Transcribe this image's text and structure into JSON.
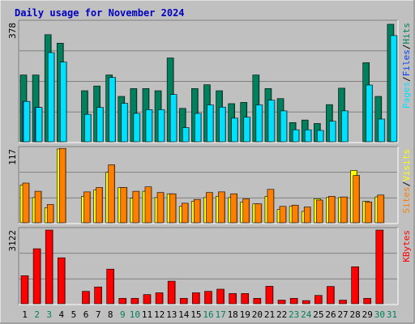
{
  "title": "Daily usage for November 2024",
  "colors": {
    "background": "#c0c0c0",
    "plot_bg": "#c0c0c0",
    "title": "#0000c0",
    "hits": "#00805c",
    "files": "#0040ff",
    "pages": "#00e0ff",
    "visits": "#ffff00",
    "sites": "#ff8000",
    "kbytes": "#ff0000",
    "weekend_label": "#00805c",
    "weekday_label": "#000000",
    "slash": "#000000"
  },
  "chart_data": [
    {
      "type": "bar",
      "panel": "hits-files-pages",
      "ymax_label": "378",
      "ymax": 378,
      "grid": true,
      "legend": [
        "Pages",
        "Files",
        "Hits"
      ],
      "categories": [
        "1",
        "2",
        "3",
        "4",
        "5",
        "6",
        "7",
        "8",
        "9",
        "10",
        "11",
        "12",
        "13",
        "14",
        "15",
        "16",
        "17",
        "18",
        "19",
        "20",
        "21",
        "22",
        "23",
        "24",
        "25",
        "26",
        "27",
        "28",
        "29",
        "30",
        "31"
      ],
      "weekend_days": [
        "2",
        "3",
        "9",
        "10",
        "16",
        "17",
        "23",
        "24",
        "30",
        "31"
      ],
      "series": [
        {
          "name": "Hits",
          "values": [
            212,
            212,
            340,
            313,
            0,
            162,
            177,
            212,
            144,
            169,
            169,
            162,
            266,
            106,
            169,
            181,
            162,
            121,
            125,
            212,
            169,
            137,
            61,
            69,
            58,
            118,
            170,
            0,
            251,
            144,
            373
          ]
        },
        {
          "name": "Files",
          "values": [
            128,
            109,
            0,
            0,
            0,
            0,
            0,
            0,
            0,
            0,
            0,
            0,
            0,
            0,
            0,
            0,
            0,
            0,
            0,
            0,
            0,
            0,
            0,
            0,
            0,
            0,
            0,
            0,
            0,
            0,
            0
          ]
        },
        {
          "name": "Pages",
          "values": [
            128,
            109,
            283,
            253,
            0,
            87,
            109,
            204,
            122,
            90,
            102,
            102,
            150,
            45,
            90,
            117,
            110,
            75,
            78,
            117,
            132,
            98,
            38,
            38,
            36,
            65,
            98,
            0,
            180,
            72,
            337
          ]
        }
      ]
    },
    {
      "type": "bar",
      "panel": "visits-sites",
      "ymax_label": "117",
      "ymax": 117,
      "grid": true,
      "legend": [
        "Sites",
        "Visits"
      ],
      "categories": [
        "1",
        "2",
        "3",
        "4",
        "5",
        "6",
        "7",
        "8",
        "9",
        "10",
        "11",
        "12",
        "13",
        "14",
        "15",
        "16",
        "17",
        "18",
        "19",
        "20",
        "21",
        "22",
        "23",
        "24",
        "25",
        "26",
        "27",
        "28",
        "29",
        "30",
        "31"
      ],
      "series": [
        {
          "name": "Visits",
          "values": [
            60,
            40,
            24,
            117,
            0,
            42,
            52,
            80,
            56,
            39,
            50,
            40,
            46,
            26,
            34,
            40,
            42,
            40,
            33,
            30,
            42,
            21,
            26,
            18,
            38,
            40,
            40,
            83,
            34,
            41,
            0
          ]
        },
        {
          "name": "Sites",
          "values": [
            63,
            50,
            29,
            118,
            0,
            49,
            56,
            92,
            56,
            50,
            57,
            48,
            46,
            31,
            37,
            48,
            49,
            46,
            38,
            30,
            53,
            26,
            28,
            25,
            36,
            42,
            41,
            75,
            33,
            44,
            0
          ]
        }
      ]
    },
    {
      "type": "bar",
      "panel": "kbytes",
      "ymax_label": "3122",
      "ymax": 3122,
      "grid": true,
      "legend": [
        "KBytes"
      ],
      "categories": [
        "1",
        "2",
        "3",
        "4",
        "5",
        "6",
        "7",
        "8",
        "9",
        "10",
        "11",
        "12",
        "13",
        "14",
        "15",
        "16",
        "17",
        "18",
        "19",
        "20",
        "21",
        "22",
        "23",
        "24",
        "25",
        "26",
        "27",
        "28",
        "29",
        "30",
        "31"
      ],
      "series": [
        {
          "name": "KBytes",
          "values": [
            1186,
            2331,
            3122,
            1948,
            0,
            527,
            712,
            1467,
            231,
            231,
            389,
            466,
            957,
            231,
            466,
            527,
            618,
            434,
            434,
            231,
            741,
            154,
            231,
            134,
            354,
            734,
            154,
            1567,
            231,
            3122,
            0
          ]
        }
      ]
    }
  ]
}
